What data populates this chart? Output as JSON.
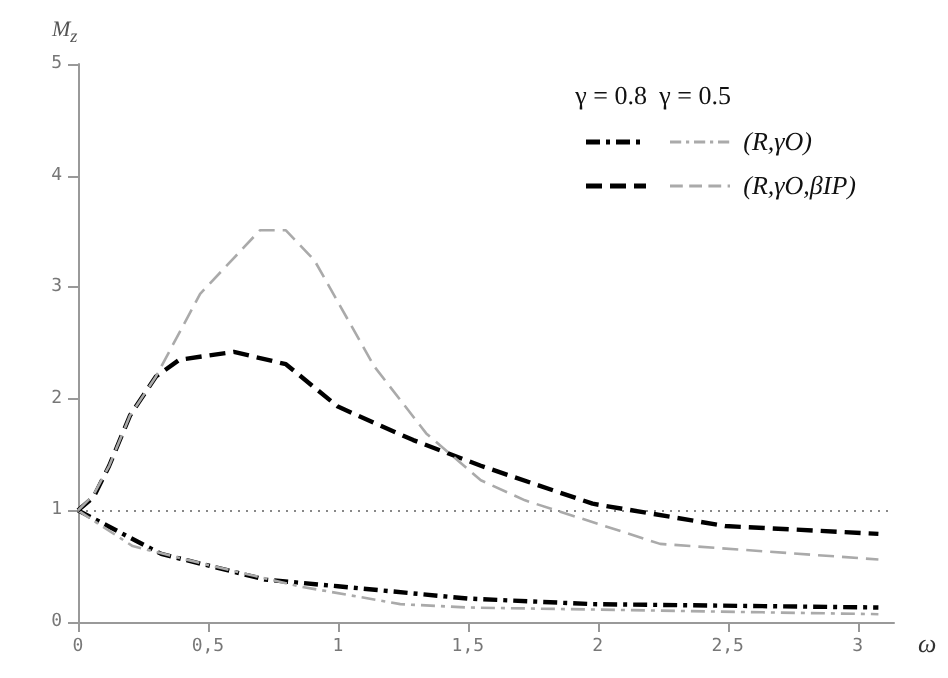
{
  "chart_data": {
    "type": "line",
    "xlabel": "ω",
    "ylabel": "M$_{z}$",
    "xlim": [
      0,
      3.14
    ],
    "ylim": [
      0,
      5
    ],
    "xticks": [
      0,
      {
        "value": 0.5,
        "label": "0,5"
      },
      1,
      {
        "value": 1.5,
        "label": "1,5"
      },
      2,
      {
        "value": 2.5,
        "label": "2,5"
      },
      3
    ],
    "yticks": [
      0,
      1,
      2,
      3,
      4,
      5
    ],
    "grid": false,
    "marker": "none",
    "annotations": [
      "γ = 0.8",
      "γ = 0.5",
      "(R,γO)",
      "(R,γO,βIP)"
    ],
    "ref_lines": [
      {
        "axis": "y",
        "value": 1,
        "label": null,
        "color": "#888888",
        "line_style": "dotted"
      }
    ],
    "series": [
      {
        "color": "#000000",
        "line_style": "dashdot",
        "x": [
          0,
          0.32,
          0.72,
          1.0,
          1.5,
          1.98,
          3.08
        ],
        "values": [
          1,
          0.61,
          0.38,
          0.32,
          0.21,
          0.16,
          0.13
        ]
      },
      {
        "color": "#aaaaaa",
        "line_style": "dashdot",
        "x": [
          0,
          0.21,
          0.52,
          0.85,
          1.24,
          1.5,
          3.08
        ],
        "values": [
          1,
          0.68,
          0.5,
          0.32,
          0.16,
          0.13,
          0.07
        ]
      },
      {
        "color": "#000000",
        "line_style": "dashed",
        "x": [
          0,
          0.06,
          0.12,
          0.2,
          0.3,
          0.39,
          0.6,
          0.8,
          1.0,
          1.29,
          1.55,
          1.98,
          2.49,
          3.08
        ],
        "values": [
          1,
          1.12,
          1.4,
          1.85,
          2.2,
          2.35,
          2.42,
          2.31,
          1.93,
          1.63,
          1.4,
          1.06,
          0.86,
          0.79
        ]
      },
      {
        "color": "#aaaaaa",
        "line_style": "dashed",
        "x": [
          0,
          0.06,
          0.12,
          0.2,
          0.3,
          0.47,
          0.7,
          0.8,
          0.91,
          1.14,
          1.34,
          1.55,
          1.72,
          2.24,
          3.08
        ],
        "values": [
          1,
          1.14,
          1.4,
          1.85,
          2.2,
          2.94,
          3.51,
          3.51,
          3.24,
          2.29,
          1.69,
          1.27,
          1.09,
          0.7,
          0.56
        ]
      }
    ]
  }
}
